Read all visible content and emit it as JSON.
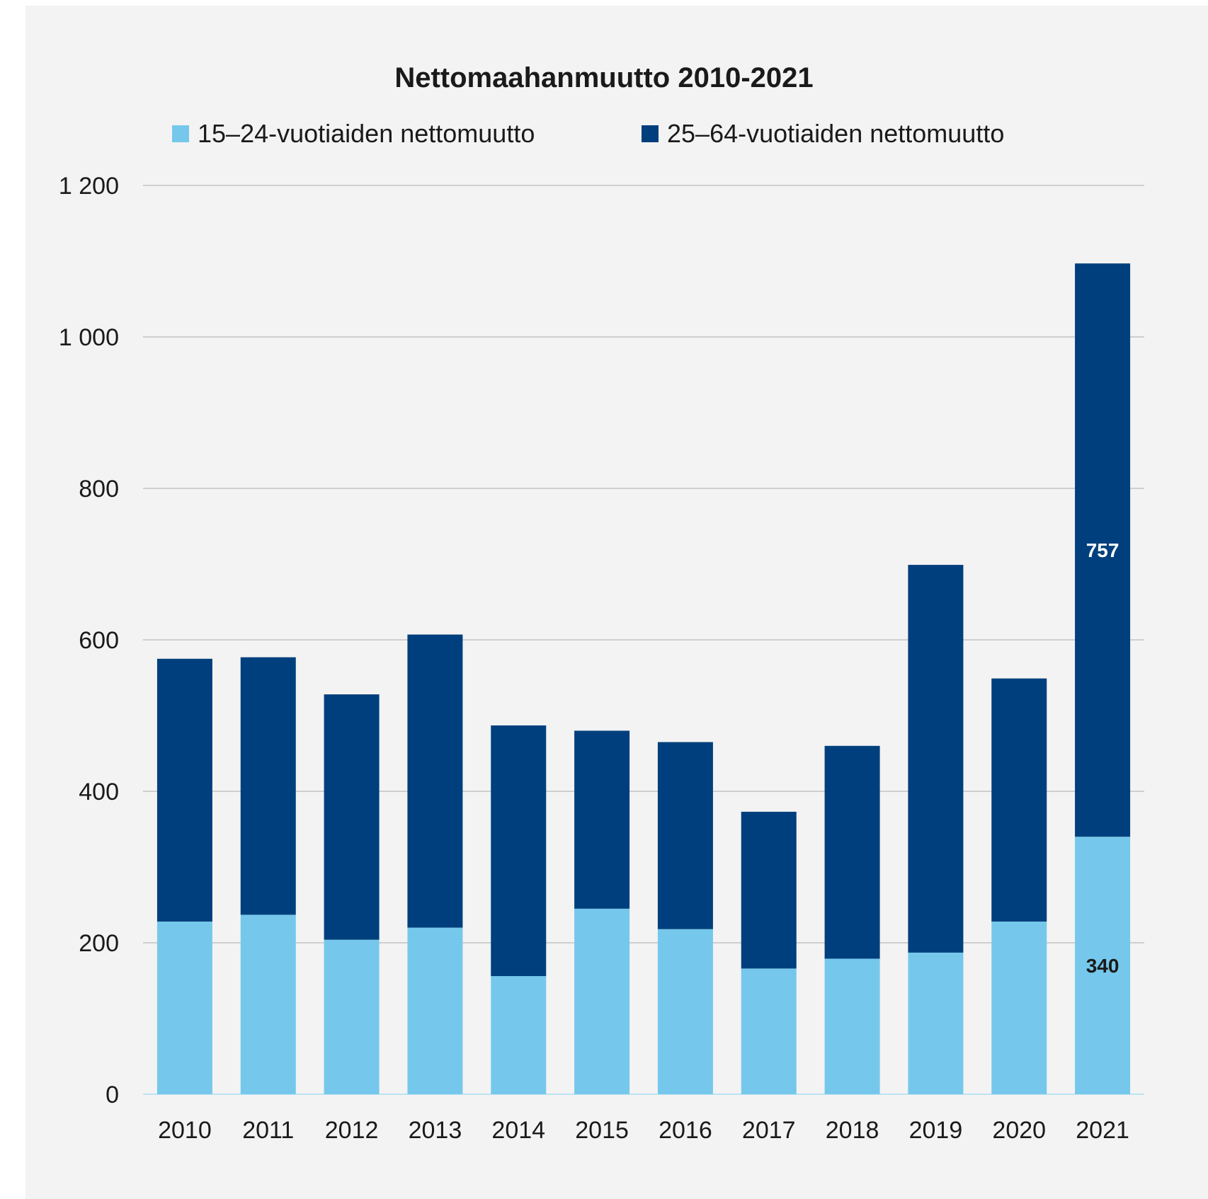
{
  "chart_data": {
    "type": "bar",
    "stacked": true,
    "title": "Nettomaahanmuutto 2010-2021",
    "categories": [
      "2010",
      "2011",
      "2012",
      "2013",
      "2014",
      "2015",
      "2016",
      "2017",
      "2018",
      "2019",
      "2020",
      "2021"
    ],
    "series": [
      {
        "name": "15–24-vuotiaiden nettomuutto",
        "color": "#75c8eb",
        "values": [
          228,
          237,
          204,
          220,
          156,
          245,
          218,
          166,
          179,
          187,
          228,
          340
        ]
      },
      {
        "name": "25–64-vuotiaiden nettomuutto",
        "color": "#003f7d",
        "values": [
          347,
          340,
          324,
          387,
          331,
          235,
          247,
          207,
          281,
          512,
          321,
          757
        ]
      }
    ],
    "data_labels": [
      {
        "category": "2021",
        "series": 1,
        "text": "757"
      },
      {
        "category": "2021",
        "series": 0,
        "text": "340"
      }
    ],
    "y_ticks": [
      0,
      200,
      400,
      600,
      800,
      1000,
      1200
    ],
    "y_tick_labels": [
      "0",
      "200",
      "400",
      "600",
      "800",
      "1 000",
      "1 200"
    ],
    "ylim": [
      0,
      1200
    ],
    "grid": true,
    "legend_position": "top",
    "xlabel": "",
    "ylabel": ""
  }
}
